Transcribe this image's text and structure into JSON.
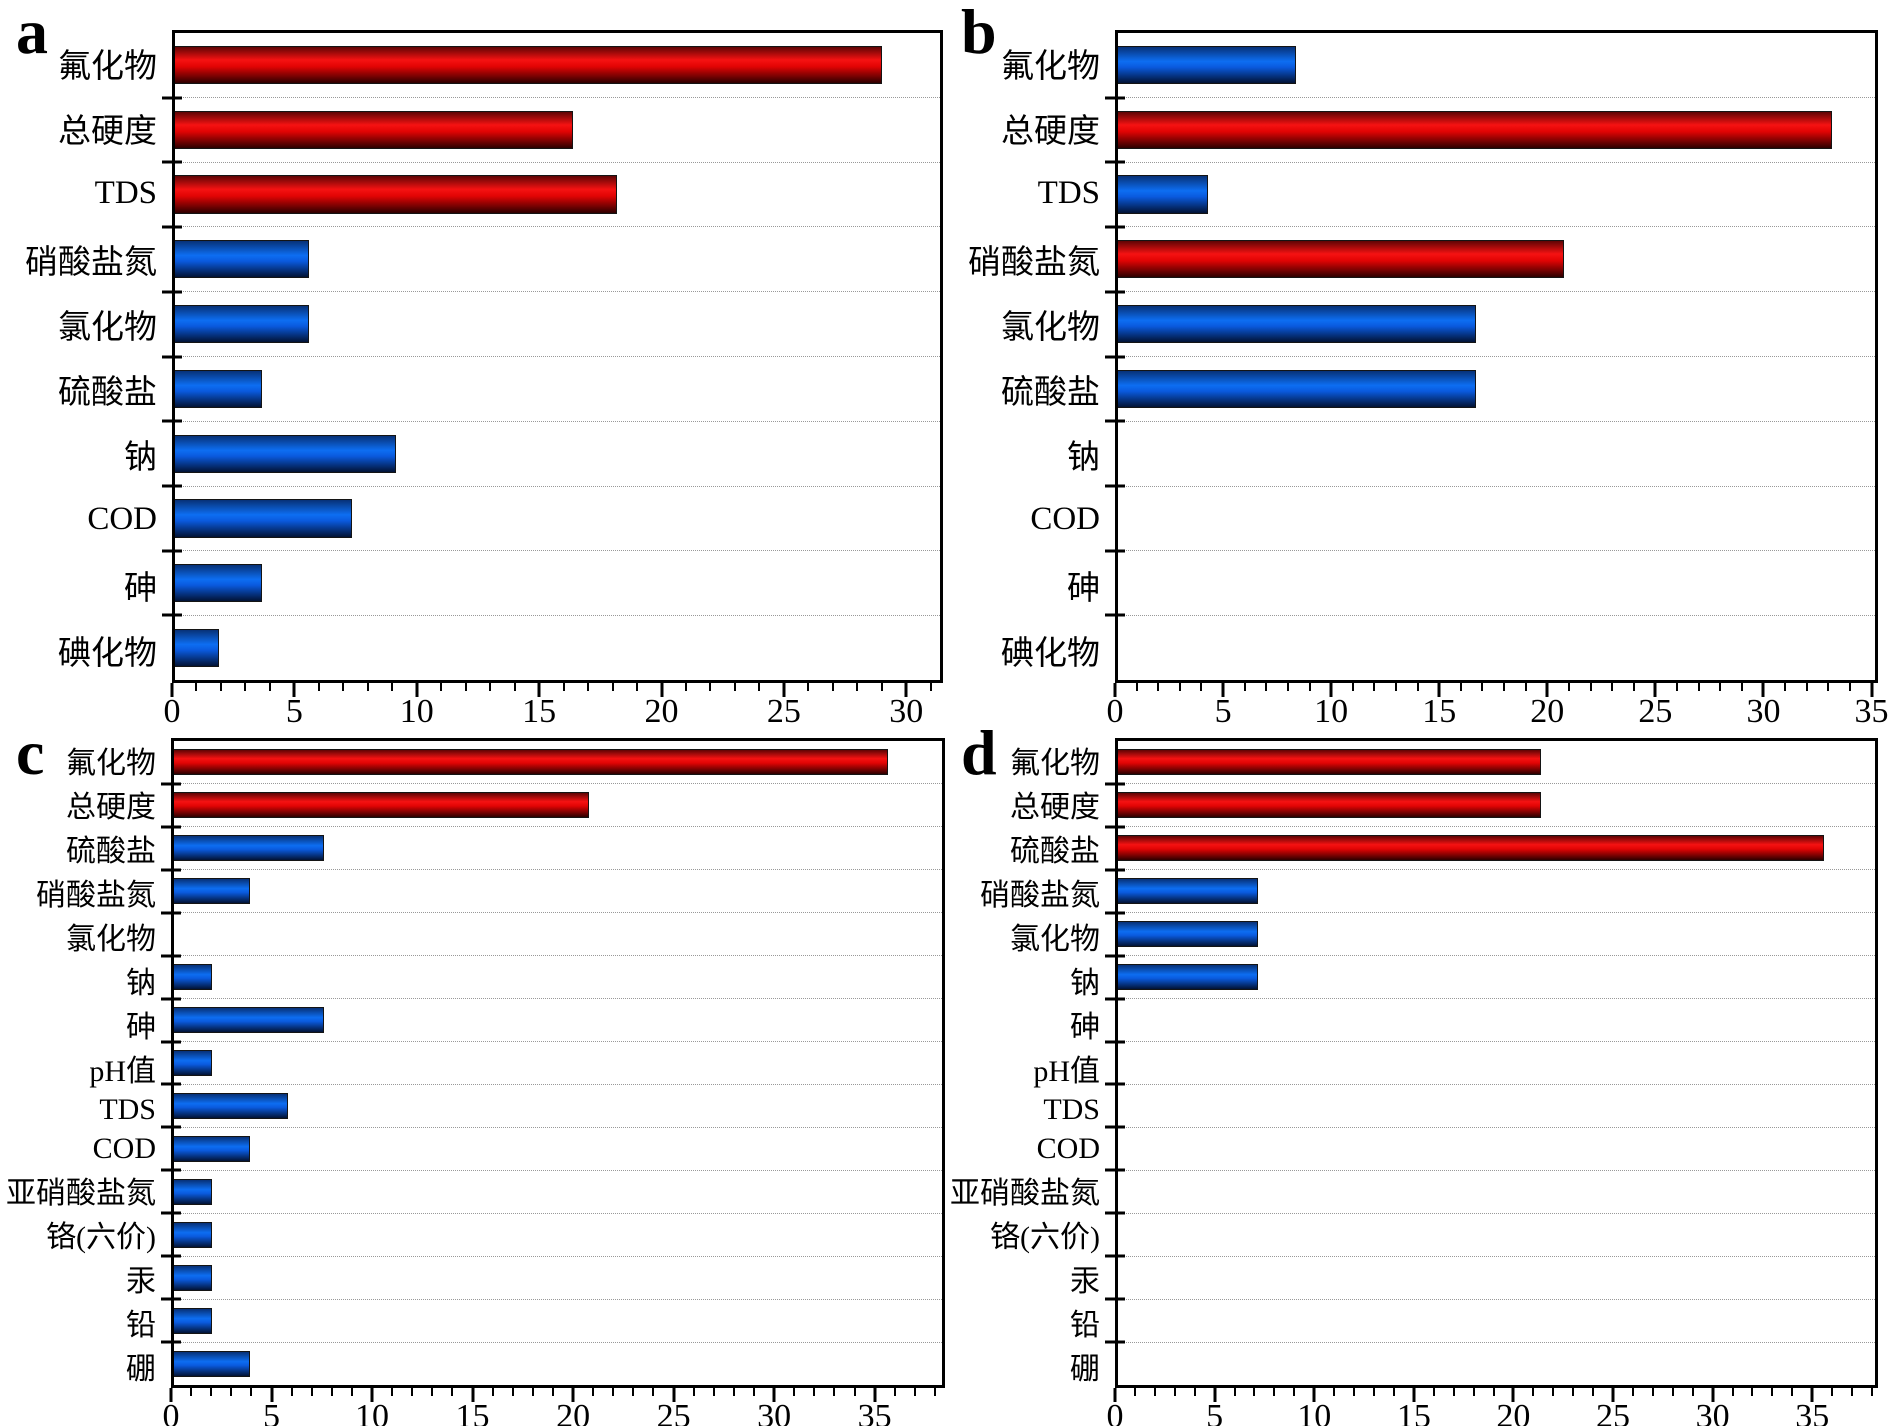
{
  "figure": {
    "background": "#ffffff",
    "grid": "horizontal-dotted",
    "legend": "none",
    "bar_colors": {
      "red": "#e20404",
      "blue": "#0d6ef2"
    },
    "grid_color": "#999999"
  },
  "chart_data": [
    {
      "type": "bar",
      "orientation": "horizontal",
      "letter": "a",
      "categories": [
        "氟化物",
        "总硬度",
        "TDS",
        "硝酸盐氮",
        "氯化物",
        "硫酸盐",
        "钠",
        "COD",
        "砷",
        "碘化物"
      ],
      "values": [
        29.1,
        16.4,
        18.2,
        5.5,
        5.5,
        3.6,
        9.1,
        7.3,
        3.6,
        1.8
      ],
      "bar_colors": [
        "red",
        "red",
        "red",
        "blue",
        "blue",
        "blue",
        "blue",
        "blue",
        "blue",
        "blue"
      ],
      "xticks": [
        0,
        5,
        10,
        15,
        20,
        25,
        30
      ],
      "xlim": [
        0,
        31.5
      ],
      "minor_step": 1,
      "title": "",
      "xlabel": "",
      "ylabel": ""
    },
    {
      "type": "bar",
      "orientation": "horizontal",
      "letter": "b",
      "categories": [
        "氟化物",
        "总硬度",
        "TDS",
        "硝酸盐氮",
        "氯化物",
        "硫酸盐",
        "钠",
        "COD",
        "砷",
        "碘化物"
      ],
      "values": [
        8.3,
        33.3,
        4.2,
        20.8,
        16.7,
        16.7,
        0,
        0,
        0,
        0
      ],
      "bar_colors": [
        "blue",
        "red",
        "blue",
        "red",
        "blue",
        "blue",
        "blue",
        "blue",
        "blue",
        "blue"
      ],
      "xticks": [
        0,
        5,
        10,
        15,
        20,
        25,
        30,
        35
      ],
      "xlim": [
        0,
        35.3
      ],
      "minor_step": 1,
      "title": "",
      "xlabel": "",
      "ylabel": ""
    },
    {
      "type": "bar",
      "orientation": "horizontal",
      "letter": "c",
      "categories": [
        "氟化物",
        "总硬度",
        "硫酸盐",
        "硝酸盐氮",
        "氯化物",
        "钠",
        "砷",
        "pH值",
        "TDS",
        "COD",
        "亚硝酸盐氮",
        "铬(六价)",
        "汞",
        "铅",
        "硼"
      ],
      "values": [
        35.8,
        20.8,
        7.5,
        3.8,
        0,
        1.9,
        7.5,
        1.9,
        5.7,
        3.8,
        1.9,
        1.9,
        1.9,
        1.9,
        3.8
      ],
      "bar_colors": [
        "red",
        "red",
        "blue",
        "blue",
        "blue",
        "blue",
        "blue",
        "blue",
        "blue",
        "blue",
        "blue",
        "blue",
        "blue",
        "blue",
        "blue"
      ],
      "xticks": [
        0,
        5,
        10,
        15,
        20,
        25,
        30,
        35
      ],
      "xlim": [
        0,
        38.5
      ],
      "minor_step": 1,
      "title": "",
      "xlabel": "",
      "ylabel": ""
    },
    {
      "type": "bar",
      "orientation": "horizontal",
      "letter": "d",
      "categories": [
        "氟化物",
        "总硬度",
        "硫酸盐",
        "硝酸盐氮",
        "氯化物",
        "钠",
        "砷",
        "pH值",
        "TDS",
        "COD",
        "亚硝酸盐氮",
        "铬(六价)",
        "汞",
        "铅",
        "硼"
      ],
      "values": [
        21.4,
        21.4,
        35.7,
        7.1,
        7.1,
        7.1,
        0,
        0,
        0,
        0,
        0,
        0,
        0,
        0,
        0
      ],
      "bar_colors": [
        "red",
        "red",
        "red",
        "blue",
        "blue",
        "blue",
        "blue",
        "blue",
        "blue",
        "blue",
        "blue",
        "blue",
        "blue",
        "blue",
        "blue"
      ],
      "xticks": [
        0,
        5,
        10,
        15,
        20,
        25,
        30,
        35
      ],
      "xlim": [
        0,
        38.3
      ],
      "minor_step": 1,
      "title": "",
      "xlabel": "",
      "ylabel": ""
    }
  ]
}
